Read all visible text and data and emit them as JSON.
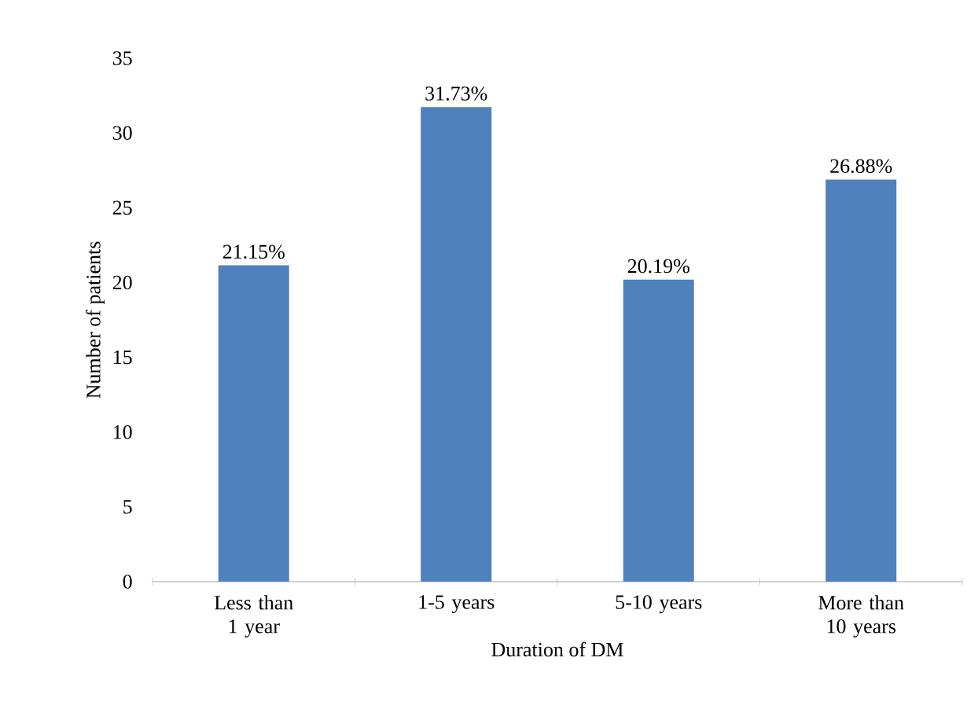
{
  "chart_data": {
    "type": "bar",
    "xlabel": "Duration of DM",
    "ylabel": "Number of patients",
    "categories": [
      "Less than 1 year",
      "1-5 years",
      "5-10 years",
      "More than 10 years"
    ],
    "values": [
      21.15,
      31.73,
      20.19,
      26.88
    ],
    "value_labels": [
      "21.15%",
      "31.73%",
      "20.19%",
      "26.88%"
    ],
    "color": "#4f81bd",
    "ylim": [
      0,
      35
    ],
    "yticks": [
      0,
      5,
      10,
      15,
      20,
      25,
      30,
      35
    ],
    "grid": false
  }
}
